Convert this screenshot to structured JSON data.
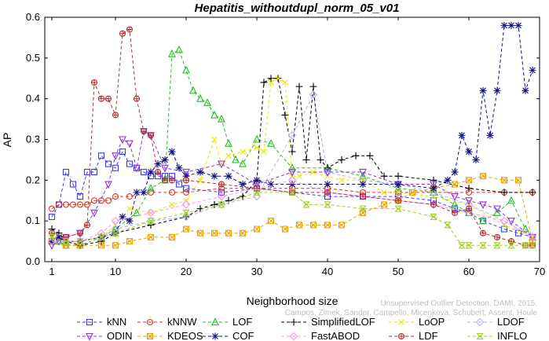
{
  "chart_data": {
    "type": "line",
    "title": "Hepatitis_withoutdupl_norm_05_v01",
    "xlabel": "Neighborhood size",
    "ylabel": "AP",
    "xlim": [
      0,
      70
    ],
    "ylim": [
      0,
      0.6
    ],
    "xticks": [
      1,
      10,
      20,
      30,
      40,
      50,
      60,
      70
    ],
    "yticks": [
      0.0,
      0.1,
      0.2,
      0.3,
      0.4,
      0.5,
      0.6
    ],
    "grid": false,
    "legend_position": "bottom",
    "series": [
      {
        "name": "kNN",
        "color": "#3a3aff",
        "marker": "square",
        "x": [
          1,
          2,
          3,
          4,
          5,
          6,
          7,
          8,
          9,
          10,
          11,
          12,
          13,
          14,
          15,
          16,
          17,
          18,
          19,
          20,
          25,
          30,
          35,
          40,
          45,
          50,
          55,
          58,
          60,
          62,
          65,
          67,
          69
        ],
        "y": [
          0.11,
          0.14,
          0.22,
          0.19,
          0.16,
          0.22,
          0.22,
          0.26,
          0.24,
          0.23,
          0.27,
          0.24,
          0.23,
          0.22,
          0.21,
          0.21,
          0.21,
          0.21,
          0.19,
          0.18,
          0.17,
          0.18,
          0.17,
          0.16,
          0.16,
          0.16,
          0.15,
          0.13,
          0.12,
          0.1,
          0.08,
          0.07,
          0.06
        ]
      },
      {
        "name": "kNNW",
        "color": "#e03020",
        "marker": "circle",
        "x": [
          1,
          2,
          3,
          4,
          5,
          6,
          7,
          8,
          9,
          10,
          12,
          15,
          18,
          20,
          25,
          30,
          35,
          40,
          45,
          50,
          55,
          60,
          65,
          69
        ],
        "y": [
          0.13,
          0.14,
          0.14,
          0.14,
          0.14,
          0.14,
          0.15,
          0.15,
          0.15,
          0.16,
          0.16,
          0.17,
          0.17,
          0.17,
          0.18,
          0.18,
          0.18,
          0.18,
          0.17,
          0.17,
          0.17,
          0.17,
          0.17,
          0.17
        ]
      },
      {
        "name": "LOF",
        "color": "#20c020",
        "marker": "triangle",
        "x": [
          1,
          2,
          3,
          5,
          8,
          10,
          13,
          15,
          17,
          18,
          19,
          20,
          21,
          22,
          23,
          24,
          25,
          26,
          27,
          28,
          30,
          32,
          35,
          40,
          45,
          50,
          55,
          58,
          60,
          62,
          64,
          66,
          68,
          69
        ],
        "y": [
          0.05,
          0.05,
          0.04,
          0.04,
          0.06,
          0.08,
          0.12,
          0.18,
          0.2,
          0.51,
          0.52,
          0.47,
          0.42,
          0.4,
          0.39,
          0.36,
          0.35,
          0.29,
          0.25,
          0.24,
          0.3,
          0.29,
          0.23,
          0.23,
          0.21,
          0.18,
          0.17,
          0.14,
          0.12,
          0.1,
          0.12,
          0.15,
          0.08,
          0.06
        ]
      },
      {
        "name": "SimplifiedLOF",
        "color": "#000000",
        "marker": "plus",
        "x": [
          1,
          2,
          3,
          5,
          8,
          10,
          15,
          20,
          22,
          24,
          26,
          28,
          30,
          31,
          32,
          33,
          34,
          35,
          36,
          37,
          38,
          39,
          40,
          42,
          44,
          46,
          48,
          50,
          55,
          60,
          65,
          69
        ],
        "y": [
          0.08,
          0.07,
          0.05,
          0.04,
          0.05,
          0.07,
          0.09,
          0.11,
          0.13,
          0.14,
          0.15,
          0.16,
          0.2,
          0.44,
          0.45,
          0.45,
          0.36,
          0.27,
          0.43,
          0.25,
          0.43,
          0.25,
          0.23,
          0.25,
          0.26,
          0.26,
          0.21,
          0.21,
          0.2,
          0.18,
          0.17,
          0.17
        ]
      },
      {
        "name": "LoOP",
        "color": "#e8e800",
        "marker": "x",
        "x": [
          1,
          3,
          5,
          8,
          10,
          12,
          15,
          18,
          20,
          22,
          24,
          25,
          26,
          28,
          30,
          31,
          32,
          33,
          34,
          35,
          36,
          38,
          40,
          42,
          45,
          48,
          50,
          55,
          60,
          65,
          69
        ],
        "y": [
          0.05,
          0.04,
          0.05,
          0.06,
          0.09,
          0.13,
          0.12,
          0.14,
          0.15,
          0.2,
          0.3,
          0.24,
          0.26,
          0.27,
          0.28,
          0.27,
          0.44,
          0.45,
          0.44,
          0.21,
          0.21,
          0.22,
          0.21,
          0.2,
          0.2,
          0.17,
          0.17,
          0.16,
          0.14,
          0.09,
          0.06
        ]
      },
      {
        "name": "LDOF",
        "color": "#b0b0f0",
        "marker": "diamond",
        "x": [
          1,
          3,
          5,
          8,
          10,
          15,
          20,
          25,
          30,
          35,
          38,
          40,
          45,
          50,
          55,
          60,
          65,
          69
        ],
        "y": [
          0.05,
          0.04,
          0.05,
          0.06,
          0.08,
          0.1,
          0.11,
          0.14,
          0.16,
          0.31,
          0.41,
          0.22,
          0.2,
          0.19,
          0.17,
          0.14,
          0.1,
          0.06
        ]
      },
      {
        "name": "ODIN",
        "color": "#9030e0",
        "marker": "triangle-down",
        "x": [
          1,
          2,
          3,
          5,
          7,
          9,
          10,
          11,
          12,
          13,
          14,
          15,
          17,
          20,
          25,
          30,
          35,
          40,
          45,
          50,
          55,
          58,
          60,
          62,
          64,
          66,
          69
        ],
        "y": [
          0.04,
          0.05,
          0.06,
          0.07,
          0.12,
          0.19,
          0.26,
          0.3,
          0.29,
          0.23,
          0.32,
          0.31,
          0.23,
          0.22,
          0.24,
          0.19,
          0.22,
          0.22,
          0.22,
          0.19,
          0.19,
          0.16,
          0.15,
          0.14,
          0.13,
          0.1,
          0.06
        ]
      },
      {
        "name": "KDEOS",
        "color": "#f0a000",
        "marker": "square-x",
        "x": [
          1,
          3,
          5,
          8,
          10,
          12,
          15,
          18,
          20,
          22,
          24,
          26,
          28,
          30,
          32,
          34,
          36,
          38,
          40,
          42,
          45,
          48,
          50,
          52,
          55,
          58,
          60,
          62,
          65,
          67,
          69
        ],
        "y": [
          0.05,
          0.04,
          0.04,
          0.04,
          0.04,
          0.05,
          0.06,
          0.06,
          0.08,
          0.07,
          0.07,
          0.07,
          0.07,
          0.08,
          0.1,
          0.08,
          0.09,
          0.09,
          0.09,
          0.09,
          0.12,
          0.14,
          0.15,
          0.17,
          0.18,
          0.19,
          0.2,
          0.21,
          0.2,
          0.2,
          0.05
        ]
      },
      {
        "name": "COF",
        "color": "#101080",
        "marker": "star",
        "x": [
          1,
          2,
          3,
          5,
          8,
          10,
          11,
          12,
          13,
          14,
          15,
          16,
          17,
          18,
          19,
          20,
          22,
          24,
          26,
          28,
          30,
          32,
          35,
          40,
          45,
          50,
          55,
          57,
          58,
          59,
          60,
          61,
          62,
          63,
          64,
          65,
          66,
          67,
          68,
          69
        ],
        "y": [
          0.05,
          0.06,
          0.05,
          0.05,
          0.06,
          0.07,
          0.11,
          0.1,
          0.17,
          0.17,
          0.22,
          0.24,
          0.25,
          0.27,
          0.23,
          0.21,
          0.22,
          0.21,
          0.21,
          0.19,
          0.2,
          0.19,
          0.19,
          0.19,
          0.19,
          0.19,
          0.18,
          0.2,
          0.22,
          0.31,
          0.27,
          0.25,
          0.42,
          0.31,
          0.42,
          0.58,
          0.58,
          0.58,
          0.42,
          0.47
        ]
      },
      {
        "name": "FastABOD",
        "color": "#ff90ff",
        "marker": "diamond",
        "x": [
          1,
          3,
          5,
          8,
          10,
          15,
          20,
          25,
          30,
          35,
          40,
          45,
          50,
          55,
          60,
          65,
          69
        ],
        "y": [
          0.05,
          0.05,
          0.05,
          0.07,
          0.1,
          0.12,
          0.14,
          0.16,
          0.18,
          0.2,
          0.17,
          0.16,
          0.15,
          0.14,
          0.12,
          0.1,
          0.06
        ]
      },
      {
        "name": "LDF",
        "color": "#b03030",
        "marker": "circle-plus",
        "x": [
          1,
          3,
          5,
          6,
          7,
          8,
          9,
          10,
          11,
          12,
          13,
          14,
          15,
          16,
          17,
          18,
          20,
          25,
          30,
          35,
          40,
          45,
          50,
          55,
          58,
          60,
          62,
          64,
          66,
          68,
          69
        ],
        "y": [
          0.07,
          0.06,
          0.07,
          0.09,
          0.44,
          0.4,
          0.4,
          0.36,
          0.56,
          0.57,
          0.4,
          0.32,
          0.31,
          0.22,
          0.2,
          0.2,
          0.2,
          0.19,
          0.18,
          0.17,
          0.17,
          0.16,
          0.15,
          0.14,
          0.12,
          0.13,
          0.07,
          0.06,
          0.05,
          0.04,
          0.04
        ]
      },
      {
        "name": "INFLO",
        "color": "#a0d020",
        "marker": "hourglass",
        "x": [
          1,
          3,
          5,
          8,
          10,
          15,
          20,
          25,
          30,
          35,
          37,
          40,
          45,
          50,
          55,
          57,
          59,
          60,
          62,
          64,
          66,
          68,
          69
        ],
        "y": [
          0.06,
          0.05,
          0.05,
          0.06,
          0.07,
          0.1,
          0.12,
          0.14,
          0.17,
          0.17,
          0.14,
          0.14,
          0.13,
          0.13,
          0.11,
          0.09,
          0.04,
          0.04,
          0.04,
          0.04,
          0.04,
          0.04,
          0.04
        ]
      }
    ]
  },
  "watermark": {
    "line1": "Unsupervised Outlier Detection, DAMI, 2015.",
    "line2": "Campos, Zimek, Sander, Campello, Micenkova, Schubert, Assent, Houle"
  }
}
